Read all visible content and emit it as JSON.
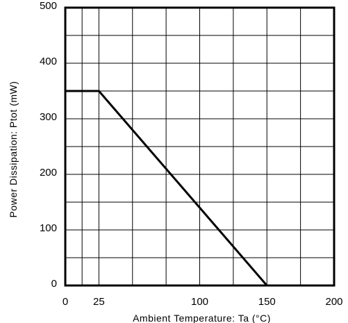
{
  "chart_data": {
    "type": "line",
    "title": "",
    "xlabel": "Ambient Temperature: Ta (°C)",
    "ylabel": "Power Dissipation: Ptot (mW)",
    "xlim": [
      0,
      200
    ],
    "ylim": [
      0,
      500
    ],
    "x_ticks": [
      {
        "value": 0,
        "label": "0"
      },
      {
        "value": 25,
        "label": "25"
      },
      {
        "value": 100,
        "label": "100"
      },
      {
        "value": 150,
        "label": "150"
      },
      {
        "value": 200,
        "label": "200"
      }
    ],
    "y_ticks": [
      {
        "value": 0,
        "label": "0"
      },
      {
        "value": 100,
        "label": "100"
      },
      {
        "value": 200,
        "label": "200"
      },
      {
        "value": 300,
        "label": "300"
      },
      {
        "value": 400,
        "label": "400"
      },
      {
        "value": 500,
        "label": "500"
      }
    ],
    "x_grid": [
      0,
      12.5,
      25,
      50,
      75,
      100,
      125,
      150,
      175,
      200
    ],
    "y_grid": [
      0,
      50,
      100,
      150,
      200,
      250,
      300,
      350,
      400,
      450,
      500
    ],
    "grid": true,
    "series": [
      {
        "x": [
          0,
          25,
          150
        ],
        "y": [
          350,
          350,
          0
        ]
      }
    ]
  }
}
